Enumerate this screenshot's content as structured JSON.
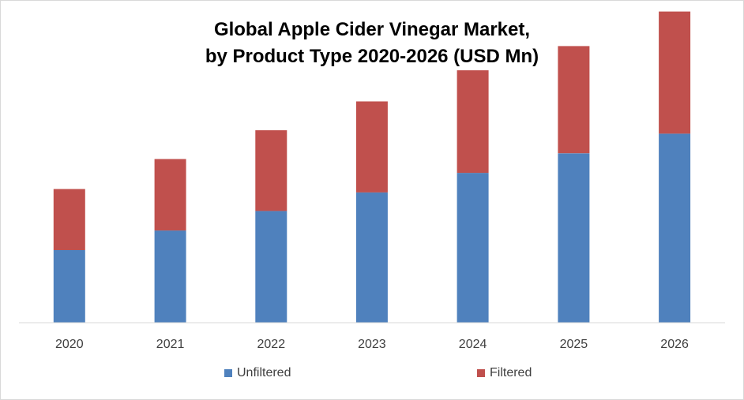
{
  "chart_data": {
    "type": "bar",
    "stacked": true,
    "title": "Global Apple Cider Vinegar Market, by Product Type 2020-2026 (USD Mn)",
    "title_lines": [
      "Global Apple Cider Vinegar Market,",
      "by Product Type 2020-2026 (USD Mn)"
    ],
    "categories": [
      "2020",
      "2021",
      "2022",
      "2023",
      "2024",
      "2025",
      "2026"
    ],
    "series": [
      {
        "name": "Unfiltered",
        "color": "#4f81bd",
        "values": [
          63,
          80,
          97,
          113,
          130,
          147,
          164
        ]
      },
      {
        "name": "Filtered",
        "color": "#c0504d",
        "values": [
          53,
          62,
          70,
          79,
          89,
          93,
          106
        ]
      }
    ],
    "xlabel": "",
    "ylabel": "",
    "ylim": [
      0,
      280
    ],
    "grid": false,
    "y_axis_visible": false,
    "legend_position": "bottom"
  }
}
